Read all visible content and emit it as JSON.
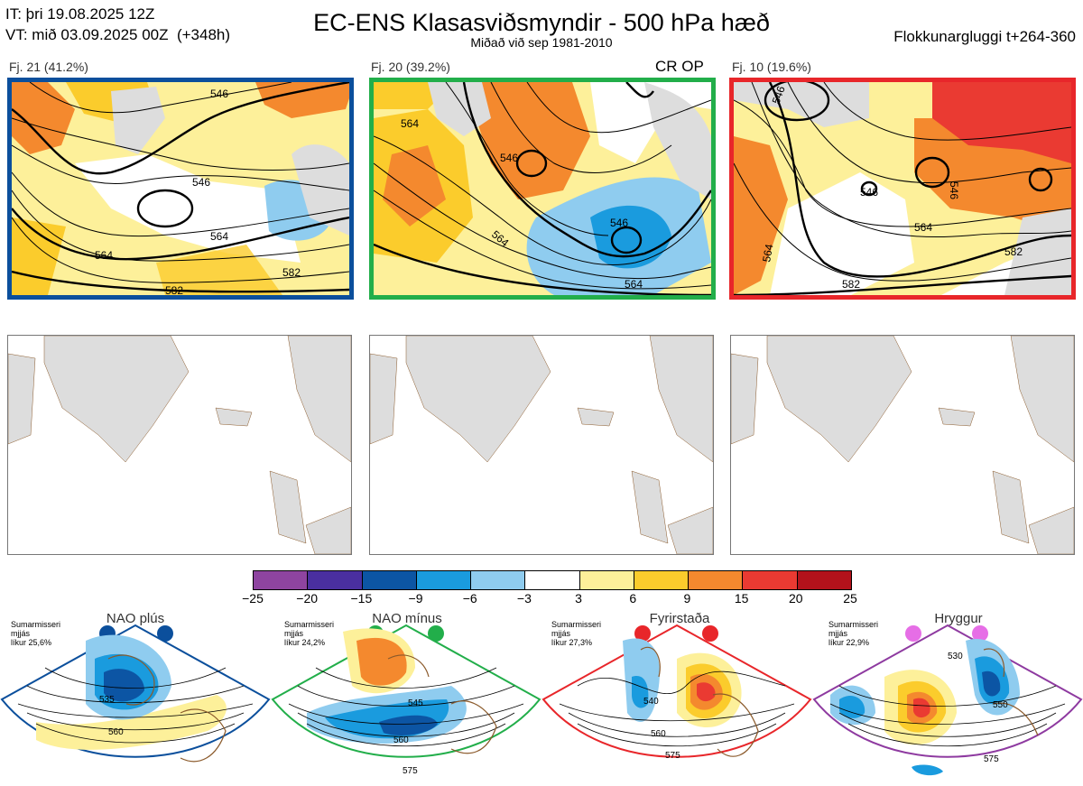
{
  "header": {
    "it_line": "IT: þri 19.08.2025 12Z",
    "vt_line": "VT: mið 03.09.2025 00Z  (+348h)",
    "title": "EC-ENS Klasasviðsmyndir - 500 hPa hæð",
    "subtitle": "Miðað við sep 1981-2010",
    "window": "Flokkunargluggi t+264-360"
  },
  "clusters": [
    {
      "label": "Fj. 21 (41.2%)",
      "border_color": "#0b4f9c",
      "contours": [
        "546",
        "546",
        "564",
        "564",
        "582",
        "582"
      ]
    },
    {
      "label": "Fj. 20 (39.2%)",
      "border_color": "#22ae4a",
      "tag": "CR OP",
      "contours": [
        "546",
        "564",
        "564",
        "546",
        "564"
      ]
    },
    {
      "label": "Fj. 10 (19.6%)",
      "border_color": "#e8262a",
      "contours": [
        "546",
        "564",
        "546",
        "546",
        "564",
        "582",
        "582"
      ]
    }
  ],
  "colorbar": {
    "ticks": [
      "−25",
      "−20",
      "−15",
      "−9",
      "−6",
      "−3",
      "3",
      "6",
      "9",
      "15",
      "20",
      "25"
    ],
    "colors": [
      "#8e44a0",
      "#4a2fa0",
      "#0c55a4",
      "#1a9bde",
      "#8fccef",
      "#ffffff",
      "#fdf09a",
      "#fbcc2c",
      "#f4892e",
      "#ea3a32",
      "#b3121b"
    ]
  },
  "regimes": [
    {
      "name": "NAO plús",
      "info": "Sumarmisseri\nmjjás\nlíkur 25,6%",
      "color": "#0b4f9c",
      "contours": [
        "535",
        "560"
      ]
    },
    {
      "name": "NAO mínus",
      "info": "Sumarmisseri\nmjjás\nlíkur 24,2%",
      "color": "#22ae4a",
      "contours": [
        "545",
        "560",
        "575"
      ]
    },
    {
      "name": "Fyrirstaða",
      "info": "Sumarmisseri\nmjjás\nlíkur 27,3%",
      "color": "#e8262a",
      "contours": [
        "540",
        "560",
        "575"
      ]
    },
    {
      "name": "Hryggur",
      "info": "Sumarmisseri\nmjjás\nlíkur 22,9%",
      "color": "#e66ee6",
      "contours": [
        "530",
        "550",
        "575"
      ]
    }
  ]
}
